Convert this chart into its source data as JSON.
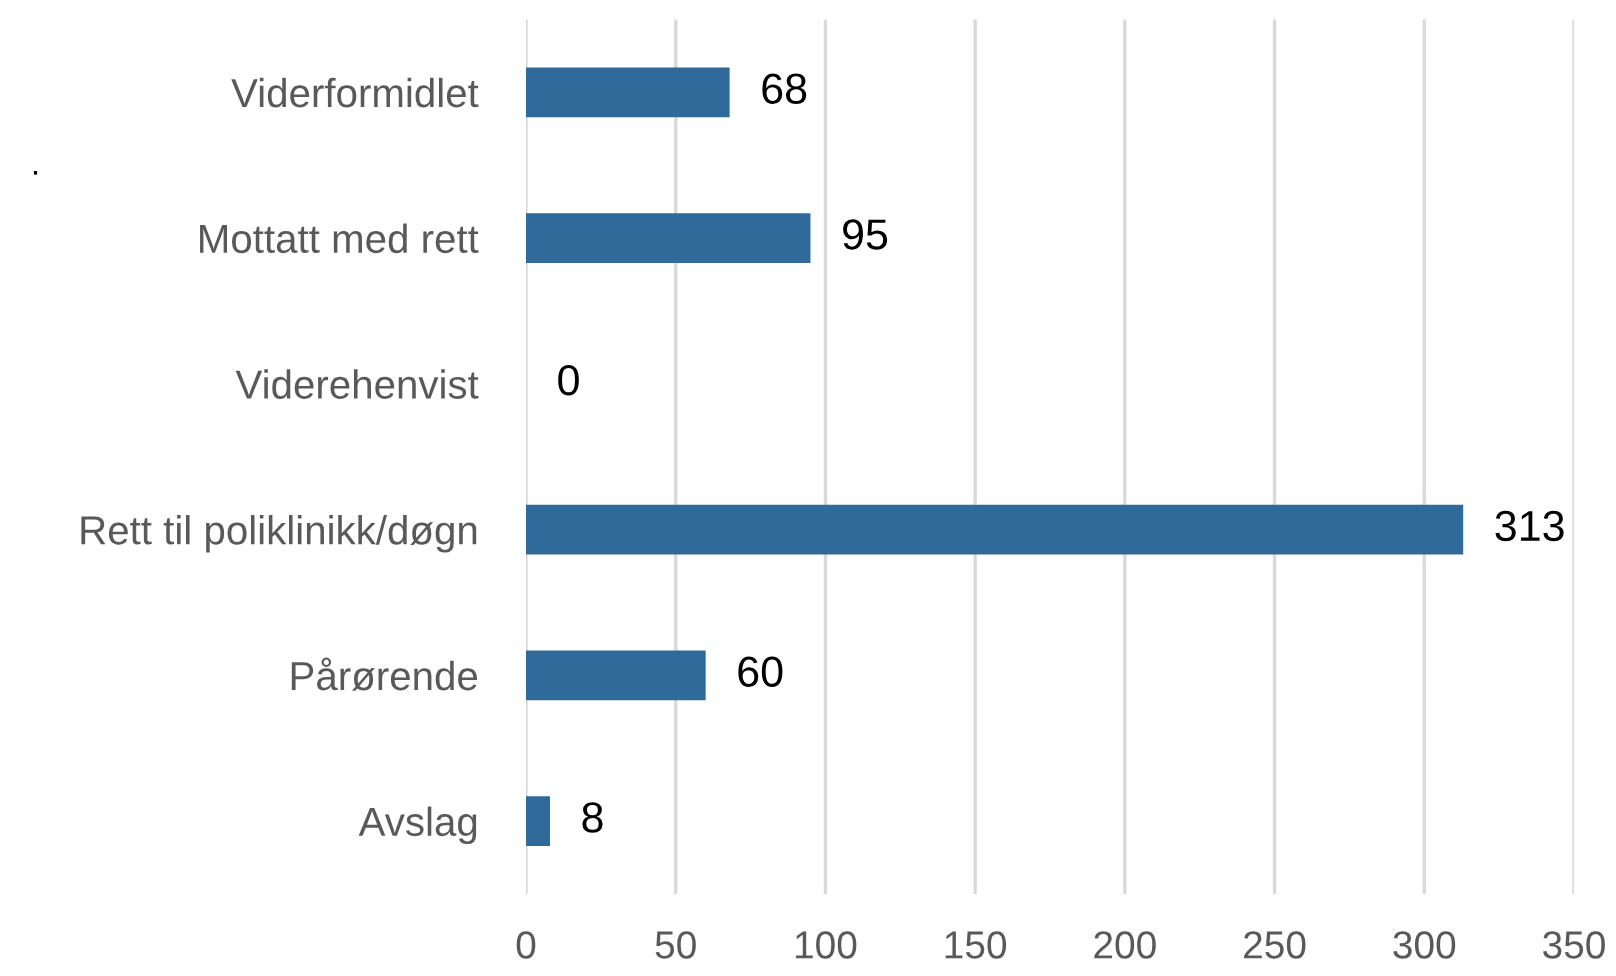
{
  "chart_data": {
    "type": "bar",
    "orientation": "horizontal",
    "categories": [
      "Viderformidlet",
      "Mottatt med rett",
      "Viderehenvist",
      "Rett til poliklinikk/døgn",
      "Pårørende",
      "Avslag"
    ],
    "values": [
      68,
      95,
      0,
      313,
      60,
      8
    ],
    "color": "#2f6a9a",
    "xlim": [
      0,
      350
    ],
    "xticks": [
      0,
      50,
      100,
      150,
      200,
      250,
      300,
      350
    ],
    "grid": "x",
    "data_labels": true,
    "annotations": [
      "."
    ]
  }
}
